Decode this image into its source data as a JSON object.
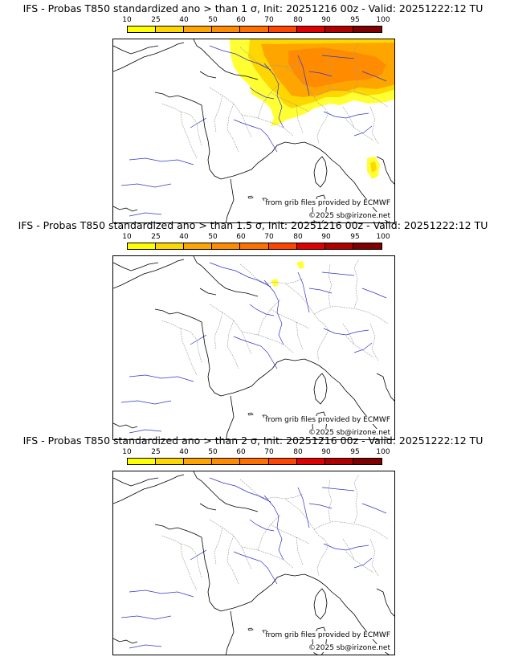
{
  "colorbar": {
    "tick_labels": [
      "10",
      "25",
      "40",
      "50",
      "60",
      "70",
      "80",
      "90",
      "95",
      "100"
    ],
    "colors": [
      "#ffff00",
      "#ffd700",
      "#ffa500",
      "#ff8c00",
      "#ff7000",
      "#ff4500",
      "#e00000",
      "#b00000",
      "#800000"
    ]
  },
  "panels": [
    {
      "title": "IFS - Probas T850  standardized ano > than 1 σ, Init: 20251216 00z - Valid: 20251222:12 TU",
      "credit_source": "from grib files provided by ECMWF",
      "credit_copyright": "©2025 sb@irizone.net",
      "signal_level": "high"
    },
    {
      "title": "IFS - Probas T850  standardized ano > than 1.5 σ, Init: 20251216 00z - Valid: 20251222:12 TU",
      "credit_source": "from grib files provided by ECMWF",
      "credit_copyright": "©2025 sb@irizone.net",
      "signal_level": "low"
    },
    {
      "title": "IFS - Probas T850  standardized ano > than 2 σ, Init: 20251216 00z - Valid: 20251222:12 TU",
      "credit_source": "from grib files provided by ECMWF",
      "credit_copyright": "©2025 sb@irizone.net",
      "signal_level": "none"
    }
  ]
}
